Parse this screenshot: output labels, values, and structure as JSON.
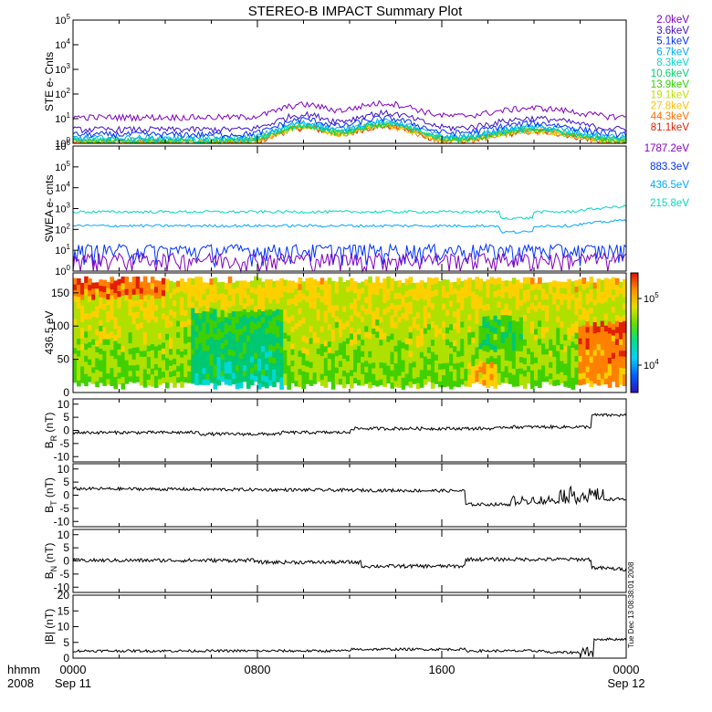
{
  "title": "STEREO-B IMPACT Summary Plot",
  "footer": {
    "left_line1": "hhmm",
    "left_line2": "2008",
    "side_stamp": "Tue Dec 13 08:38:01 2008"
  },
  "chart_data": [
    {
      "id": "ste",
      "type": "line",
      "ylabel": "STE e- Cnts",
      "yscale": "log",
      "ylim_exp": [
        0,
        5
      ],
      "series": [
        {
          "name": "2.0keV",
          "color": "#8000c0",
          "base": 11
        },
        {
          "name": "3.6keV",
          "color": "#4010c8",
          "base": 3.5
        },
        {
          "name": "5.1keV",
          "color": "#0030ff",
          "base": 2.2
        },
        {
          "name": "6.7keV",
          "color": "#00a8ff",
          "base": 1.6
        },
        {
          "name": "8.3keV",
          "color": "#00d8d0",
          "base": 1.4
        },
        {
          "name": "10.6keV",
          "color": "#00d070",
          "base": 1.3
        },
        {
          "name": "13.9keV",
          "color": "#30d000",
          "base": 1.2
        },
        {
          "name": "19.1keV",
          "color": "#c0e000",
          "base": 1.15
        },
        {
          "name": "27.8keV",
          "color": "#ffc000",
          "base": 1.1
        },
        {
          "name": "44.3keV",
          "color": "#ff7000",
          "base": 1.05
        },
        {
          "name": "81.1keV",
          "color": "#e02000",
          "base": 1.02
        }
      ]
    },
    {
      "id": "swea",
      "type": "line",
      "ylabel": "SWEA e- cnts",
      "yscale": "log",
      "ylim_exp": [
        0,
        6
      ],
      "series": [
        {
          "name": "1787.2eV",
          "color": "#8000c0",
          "base": 3
        },
        {
          "name": "883.3eV",
          "color": "#0030ff",
          "base": 8
        },
        {
          "name": "436.5eV",
          "color": "#00a8ff",
          "base": 150
        },
        {
          "name": "215.8eV",
          "color": "#00d8c0",
          "base": 700
        }
      ]
    },
    {
      "id": "pad",
      "type": "heatmap",
      "ylabel": "436.5 eV",
      "ylim": [
        0,
        180
      ],
      "yticks": [
        "0",
        "50",
        "100",
        "150"
      ],
      "colorbar_ticks": [
        "10^5",
        "10^4"
      ]
    },
    {
      "id": "br",
      "type": "line",
      "ylabel": "B_R (nT)",
      "ylim": [
        -12,
        12
      ],
      "yticks": [
        "10",
        "5",
        "0",
        "-5",
        "-10"
      ]
    },
    {
      "id": "bt",
      "type": "line",
      "ylabel": "B_T (nT)",
      "ylim": [
        -12,
        12
      ],
      "yticks": [
        "10",
        "5",
        "0",
        "-5",
        "-10"
      ]
    },
    {
      "id": "bn",
      "type": "line",
      "ylabel": "B_N (nT)",
      "ylim": [
        -12,
        12
      ],
      "yticks": [
        "10",
        "5",
        "0",
        "-5",
        "-10"
      ]
    },
    {
      "id": "bmag",
      "type": "line",
      "ylabel": "|B| (nT)",
      "ylim": [
        0,
        20
      ],
      "yticks": [
        "20",
        "15",
        "10",
        "5",
        "0"
      ]
    }
  ],
  "xaxis": {
    "ticks": [
      {
        "hhmm": "0000",
        "date": "Sep 11"
      },
      {
        "hhmm": "0800",
        "date": ""
      },
      {
        "hhmm": "1600",
        "date": ""
      },
      {
        "hhmm": "0000",
        "date": "Sep 12"
      }
    ],
    "range_hours": [
      0,
      24
    ]
  }
}
